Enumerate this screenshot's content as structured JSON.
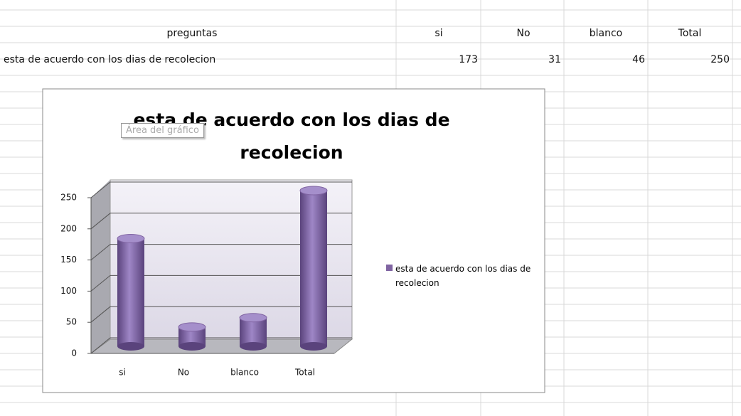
{
  "table": {
    "header": [
      "preguntas",
      "si",
      "No",
      "blanco",
      "Total"
    ],
    "rows": [
      [
        "esta de acuerdo con los dias de recolecion",
        173,
        31,
        46,
        250
      ]
    ]
  },
  "tooltip": "Área del gráfico",
  "chart_data": {
    "type": "bar",
    "title": "esta de acuerdo con los dias de recolecion",
    "categories": [
      "si",
      "No",
      "blanco",
      "Total"
    ],
    "series": [
      {
        "name": "esta de acuerdo con los dias de recolecion",
        "color": "#8064a2",
        "values": [
          173,
          31,
          46,
          250
        ]
      }
    ],
    "ylim": [
      0,
      250
    ],
    "yticks": [
      0,
      50,
      100,
      150,
      200,
      250
    ],
    "grid": true,
    "legend": "right"
  }
}
